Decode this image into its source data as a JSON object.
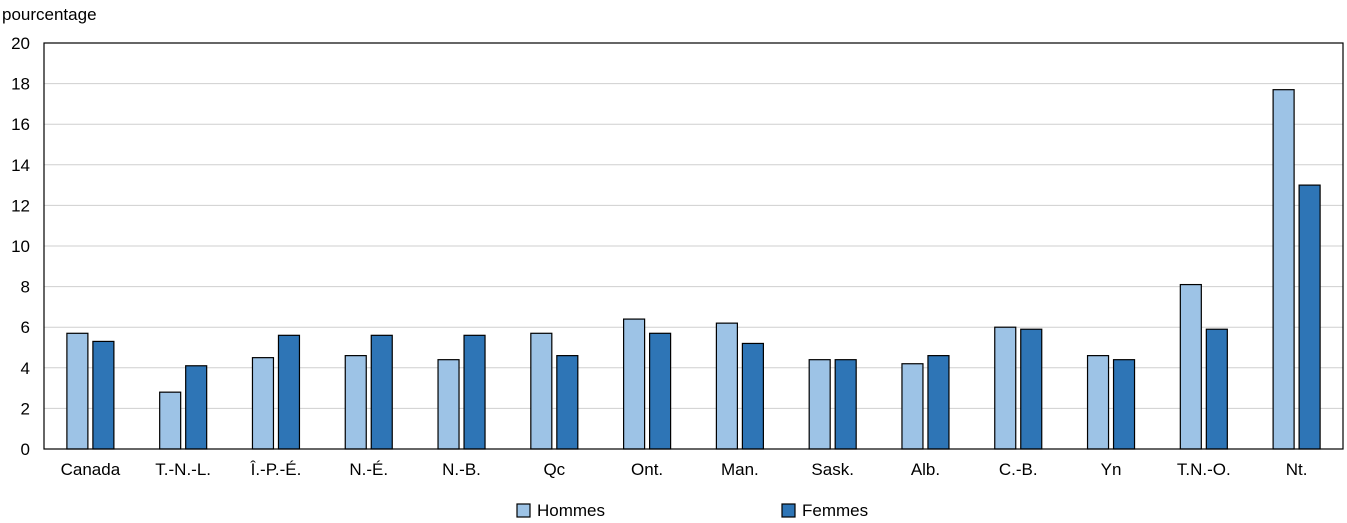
{
  "chart_data": {
    "type": "bar",
    "ylabel": "pourcentage",
    "xlabel": "",
    "ylim": [
      0,
      20
    ],
    "yticks": [
      0,
      2,
      4,
      6,
      8,
      10,
      12,
      14,
      16,
      18,
      20
    ],
    "grid": true,
    "legend_position": "bottom-center",
    "categories": [
      "Canada",
      "T.-N.-L.",
      "Î.-P.-É.",
      "N.-É.",
      "N.-B.",
      "Qc",
      "Ont.",
      "Man.",
      "Sask.",
      "Alb.",
      "C.-B.",
      "Yn",
      "T.N.-O.",
      "Nt."
    ],
    "series": [
      {
        "name": "Hommes",
        "color": "#9dc3e6",
        "values": [
          5.7,
          2.8,
          4.5,
          4.6,
          4.4,
          5.7,
          6.4,
          6.2,
          4.4,
          4.2,
          6.0,
          4.6,
          8.1,
          17.7
        ]
      },
      {
        "name": "Femmes",
        "color": "#2e75b6",
        "values": [
          5.3,
          4.1,
          5.6,
          5.6,
          5.6,
          4.6,
          5.7,
          5.2,
          4.4,
          4.6,
          5.9,
          4.4,
          5.9,
          13.0
        ]
      }
    ]
  }
}
